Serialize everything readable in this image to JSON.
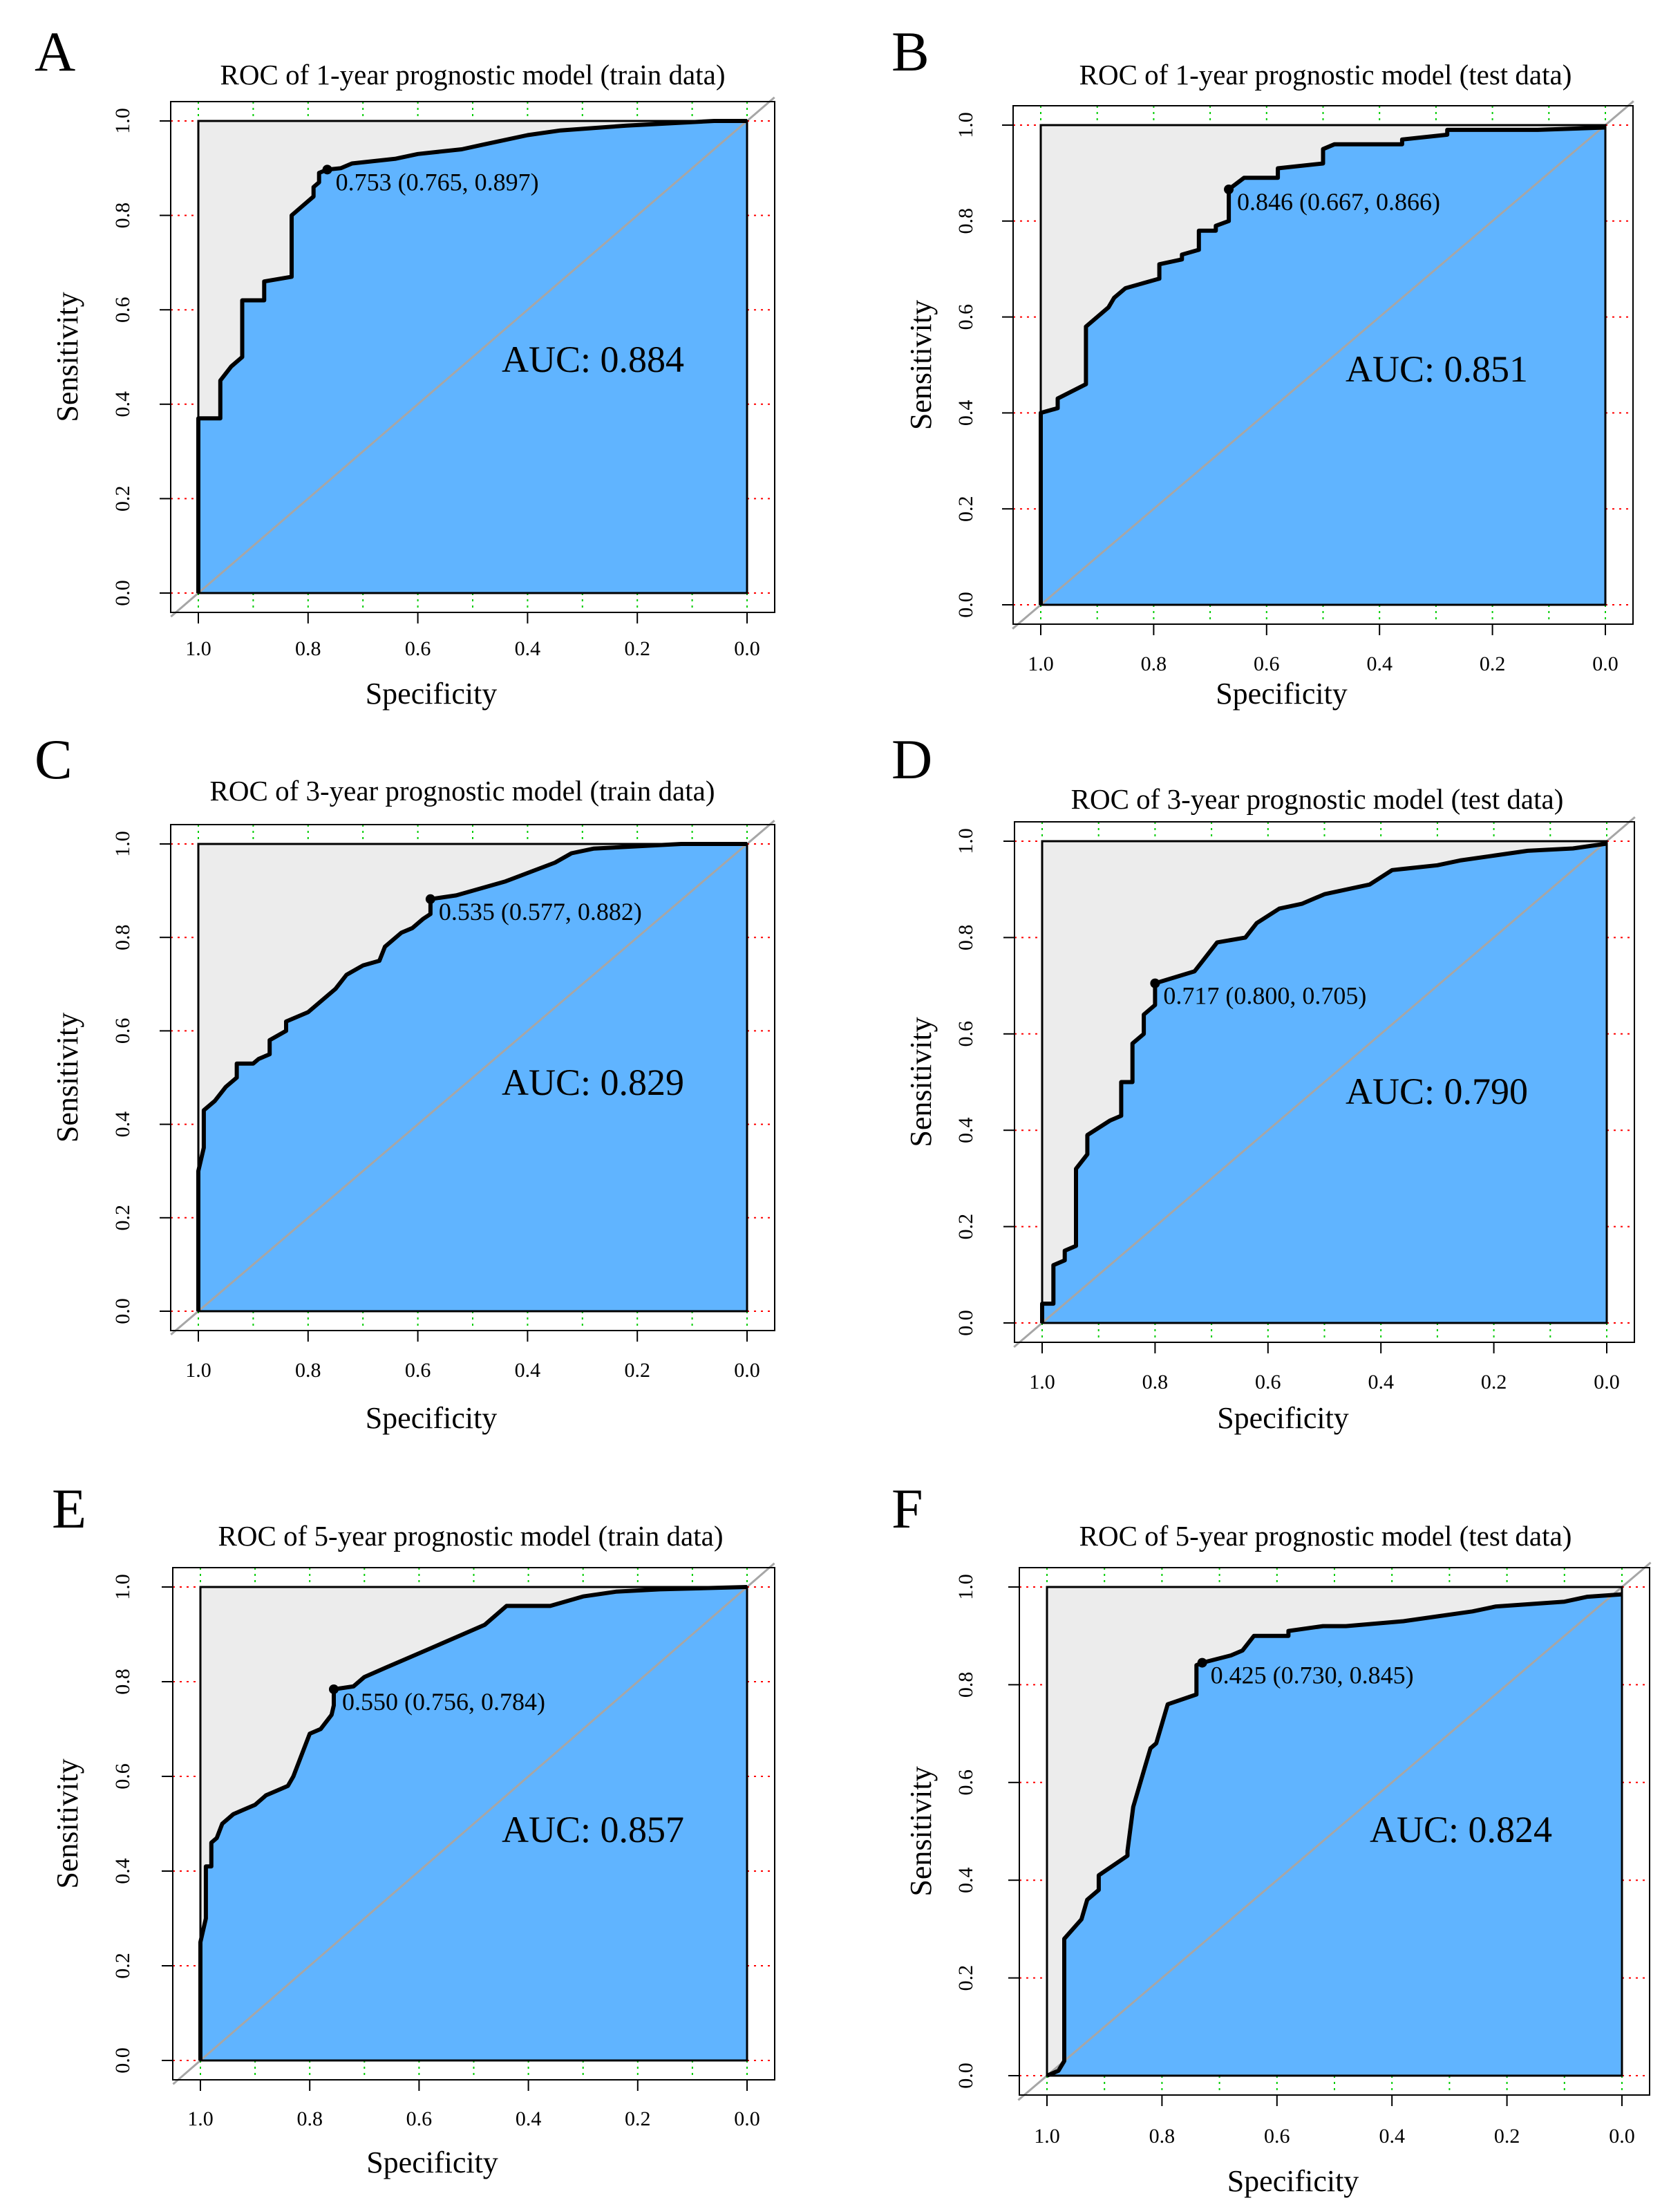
{
  "figure": {
    "panel_count": 6
  },
  "colors": {
    "auc_fill": "#60b4ff",
    "upper_fill": "#ececec",
    "curve": "#000000",
    "diagonal": "#a6a6a6",
    "red_grid": "#ff0000",
    "green_grid": "#00cc00"
  },
  "chart_data": [
    {
      "type": "line",
      "letter": "A",
      "title": "ROC of 1-year prognostic model (train data)",
      "xlabel": "Specificity",
      "ylabel": "Sensitivity",
      "xlim": [
        1.0,
        0.0
      ],
      "ylim": [
        0.0,
        1.0
      ],
      "xticks": [
        "1.0",
        "0.8",
        "0.6",
        "0.4",
        "0.2",
        "0.0"
      ],
      "yticks": [
        "0.0",
        "0.2",
        "0.4",
        "0.6",
        "0.8",
        "1.0"
      ],
      "auc_label": "AUC: 0.884",
      "threshold_label": "0.753 (0.765, 0.897)",
      "threshold_point": {
        "specificity": 0.765,
        "sensitivity": 0.897
      },
      "curve": [
        [
          1.0,
          0.0
        ],
        [
          1.0,
          0.37
        ],
        [
          0.96,
          0.37
        ],
        [
          0.96,
          0.45
        ],
        [
          0.94,
          0.48
        ],
        [
          0.92,
          0.5
        ],
        [
          0.92,
          0.62
        ],
        [
          0.88,
          0.62
        ],
        [
          0.88,
          0.66
        ],
        [
          0.83,
          0.67
        ],
        [
          0.83,
          0.8
        ],
        [
          0.81,
          0.82
        ],
        [
          0.79,
          0.84
        ],
        [
          0.79,
          0.86
        ],
        [
          0.78,
          0.87
        ],
        [
          0.78,
          0.89
        ],
        [
          0.765,
          0.897
        ],
        [
          0.74,
          0.9
        ],
        [
          0.72,
          0.91
        ],
        [
          0.64,
          0.92
        ],
        [
          0.6,
          0.93
        ],
        [
          0.52,
          0.94
        ],
        [
          0.48,
          0.95
        ],
        [
          0.44,
          0.96
        ],
        [
          0.4,
          0.97
        ],
        [
          0.34,
          0.98
        ],
        [
          0.28,
          0.985
        ],
        [
          0.22,
          0.99
        ],
        [
          0.14,
          0.995
        ],
        [
          0.06,
          1.0
        ],
        [
          0.0,
          1.0
        ]
      ]
    },
    {
      "type": "line",
      "letter": "B",
      "title": "ROC of 1-year prognostic model (test data)",
      "xlabel": "Specificity",
      "ylabel": "Sensitivity",
      "xlim": [
        1.0,
        0.0
      ],
      "ylim": [
        0.0,
        1.0
      ],
      "xticks": [
        "1.0",
        "0.8",
        "0.6",
        "0.4",
        "0.2",
        "0.0"
      ],
      "yticks": [
        "0.0",
        "0.2",
        "0.4",
        "0.6",
        "0.8",
        "1.0"
      ],
      "auc_label": "AUC: 0.851",
      "threshold_label": "0.846 (0.667, 0.866)",
      "threshold_point": {
        "specificity": 0.667,
        "sensitivity": 0.866
      },
      "curve": [
        [
          1.0,
          0.0
        ],
        [
          1.0,
          0.4
        ],
        [
          0.97,
          0.41
        ],
        [
          0.97,
          0.43
        ],
        [
          0.92,
          0.46
        ],
        [
          0.92,
          0.58
        ],
        [
          0.88,
          0.62
        ],
        [
          0.87,
          0.64
        ],
        [
          0.85,
          0.66
        ],
        [
          0.82,
          0.67
        ],
        [
          0.79,
          0.68
        ],
        [
          0.79,
          0.71
        ],
        [
          0.75,
          0.72
        ],
        [
          0.75,
          0.73
        ],
        [
          0.72,
          0.74
        ],
        [
          0.72,
          0.78
        ],
        [
          0.69,
          0.78
        ],
        [
          0.69,
          0.79
        ],
        [
          0.667,
          0.8
        ],
        [
          0.667,
          0.866
        ],
        [
          0.64,
          0.89
        ],
        [
          0.58,
          0.89
        ],
        [
          0.58,
          0.91
        ],
        [
          0.5,
          0.92
        ],
        [
          0.5,
          0.95
        ],
        [
          0.48,
          0.96
        ],
        [
          0.36,
          0.96
        ],
        [
          0.36,
          0.97
        ],
        [
          0.28,
          0.98
        ],
        [
          0.28,
          0.99
        ],
        [
          0.12,
          0.99
        ],
        [
          0.0,
          0.995
        ]
      ]
    },
    {
      "type": "line",
      "letter": "C",
      "title": "ROC of 3-year prognostic model (train data)",
      "xlabel": "Specificity",
      "ylabel": "Sensitivity",
      "xlim": [
        1.0,
        0.0
      ],
      "ylim": [
        0.0,
        1.0
      ],
      "xticks": [
        "1.0",
        "0.8",
        "0.6",
        "0.4",
        "0.2",
        "0.0"
      ],
      "yticks": [
        "0.0",
        "0.2",
        "0.4",
        "0.6",
        "0.8",
        "1.0"
      ],
      "auc_label": "AUC: 0.829",
      "threshold_label": "0.535 (0.577, 0.882)",
      "threshold_point": {
        "specificity": 0.577,
        "sensitivity": 0.882
      },
      "curve": [
        [
          1.0,
          0.0
        ],
        [
          1.0,
          0.3
        ],
        [
          0.99,
          0.35
        ],
        [
          0.99,
          0.43
        ],
        [
          0.97,
          0.45
        ],
        [
          0.95,
          0.48
        ],
        [
          0.93,
          0.5
        ],
        [
          0.93,
          0.53
        ],
        [
          0.9,
          0.53
        ],
        [
          0.89,
          0.54
        ],
        [
          0.87,
          0.55
        ],
        [
          0.87,
          0.58
        ],
        [
          0.84,
          0.6
        ],
        [
          0.84,
          0.62
        ],
        [
          0.8,
          0.64
        ],
        [
          0.77,
          0.67
        ],
        [
          0.75,
          0.69
        ],
        [
          0.73,
          0.72
        ],
        [
          0.7,
          0.74
        ],
        [
          0.67,
          0.75
        ],
        [
          0.66,
          0.78
        ],
        [
          0.63,
          0.81
        ],
        [
          0.61,
          0.82
        ],
        [
          0.59,
          0.84
        ],
        [
          0.577,
          0.85
        ],
        [
          0.577,
          0.882
        ],
        [
          0.53,
          0.89
        ],
        [
          0.44,
          0.92
        ],
        [
          0.35,
          0.96
        ],
        [
          0.32,
          0.98
        ],
        [
          0.28,
          0.99
        ],
        [
          0.2,
          0.995
        ],
        [
          0.12,
          1.0
        ],
        [
          0.0,
          1.0
        ]
      ]
    },
    {
      "type": "line",
      "letter": "D",
      "title": "ROC of 3-year prognostic model (test data)",
      "xlabel": "Specificity",
      "ylabel": "Sensitivity",
      "xlim": [
        1.0,
        0.0
      ],
      "ylim": [
        0.0,
        1.0
      ],
      "xticks": [
        "1.0",
        "0.8",
        "0.6",
        "0.4",
        "0.2",
        "0.0"
      ],
      "yticks": [
        "0.0",
        "0.2",
        "0.4",
        "0.6",
        "0.8",
        "1.0"
      ],
      "auc_label": "AUC: 0.790",
      "threshold_label": "0.717 (0.800, 0.705)",
      "threshold_point": {
        "specificity": 0.8,
        "sensitivity": 0.705
      },
      "curve": [
        [
          1.0,
          0.0
        ],
        [
          1.0,
          0.04
        ],
        [
          0.98,
          0.04
        ],
        [
          0.98,
          0.12
        ],
        [
          0.96,
          0.13
        ],
        [
          0.96,
          0.15
        ],
        [
          0.94,
          0.16
        ],
        [
          0.94,
          0.32
        ],
        [
          0.92,
          0.35
        ],
        [
          0.92,
          0.39
        ],
        [
          0.88,
          0.42
        ],
        [
          0.86,
          0.43
        ],
        [
          0.86,
          0.5
        ],
        [
          0.84,
          0.5
        ],
        [
          0.84,
          0.58
        ],
        [
          0.82,
          0.6
        ],
        [
          0.82,
          0.64
        ],
        [
          0.8,
          0.66
        ],
        [
          0.8,
          0.705
        ],
        [
          0.73,
          0.73
        ],
        [
          0.69,
          0.79
        ],
        [
          0.64,
          0.8
        ],
        [
          0.62,
          0.83
        ],
        [
          0.58,
          0.86
        ],
        [
          0.54,
          0.87
        ],
        [
          0.5,
          0.89
        ],
        [
          0.46,
          0.9
        ],
        [
          0.42,
          0.91
        ],
        [
          0.38,
          0.94
        ],
        [
          0.3,
          0.95
        ],
        [
          0.26,
          0.96
        ],
        [
          0.2,
          0.97
        ],
        [
          0.14,
          0.98
        ],
        [
          0.06,
          0.985
        ],
        [
          0.0,
          0.995
        ]
      ]
    },
    {
      "type": "line",
      "letter": "E",
      "title": "ROC of 5-year prognostic model (train data)",
      "xlabel": "Specificity",
      "ylabel": "Sensitivity",
      "xlim": [
        1.0,
        0.0
      ],
      "ylim": [
        0.0,
        1.0
      ],
      "xticks": [
        "1.0",
        "0.8",
        "0.6",
        "0.4",
        "0.2",
        "0.0"
      ],
      "yticks": [
        "0.0",
        "0.2",
        "0.4",
        "0.6",
        "0.8",
        "1.0"
      ],
      "auc_label": "AUC: 0.857",
      "threshold_label": "0.550 (0.756, 0.784)",
      "threshold_point": {
        "specificity": 0.756,
        "sensitivity": 0.784
      },
      "curve": [
        [
          1.0,
          0.0
        ],
        [
          1.0,
          0.25
        ],
        [
          0.99,
          0.3
        ],
        [
          0.99,
          0.41
        ],
        [
          0.98,
          0.41
        ],
        [
          0.98,
          0.46
        ],
        [
          0.97,
          0.47
        ],
        [
          0.96,
          0.5
        ],
        [
          0.94,
          0.52
        ],
        [
          0.92,
          0.53
        ],
        [
          0.9,
          0.54
        ],
        [
          0.88,
          0.56
        ],
        [
          0.86,
          0.57
        ],
        [
          0.84,
          0.58
        ],
        [
          0.83,
          0.6
        ],
        [
          0.82,
          0.63
        ],
        [
          0.8,
          0.69
        ],
        [
          0.78,
          0.7
        ],
        [
          0.76,
          0.73
        ],
        [
          0.756,
          0.75
        ],
        [
          0.756,
          0.784
        ],
        [
          0.72,
          0.79
        ],
        [
          0.7,
          0.81
        ],
        [
          0.66,
          0.83
        ],
        [
          0.62,
          0.85
        ],
        [
          0.58,
          0.87
        ],
        [
          0.52,
          0.9
        ],
        [
          0.48,
          0.92
        ],
        [
          0.44,
          0.96
        ],
        [
          0.36,
          0.96
        ],
        [
          0.3,
          0.98
        ],
        [
          0.24,
          0.99
        ],
        [
          0.16,
          0.995
        ],
        [
          0.0,
          1.0
        ]
      ]
    },
    {
      "type": "line",
      "letter": "F",
      "title": "ROC of 5-year prognostic model (test data)",
      "xlabel": "Specificity",
      "ylabel": "Sensitivity",
      "xlim": [
        1.0,
        0.0
      ],
      "ylim": [
        0.0,
        1.0
      ],
      "xticks": [
        "1.0",
        "0.8",
        "0.6",
        "0.4",
        "0.2",
        "0.0"
      ],
      "yticks": [
        "0.0",
        "0.2",
        "0.4",
        "0.6",
        "0.8",
        "1.0"
      ],
      "auc_label": "AUC: 0.824",
      "threshold_label": "0.425 (0.730, 0.845)",
      "threshold_point": {
        "specificity": 0.73,
        "sensitivity": 0.845
      },
      "curve": [
        [
          1.0,
          0.0
        ],
        [
          0.98,
          0.01
        ],
        [
          0.97,
          0.03
        ],
        [
          0.97,
          0.28
        ],
        [
          0.94,
          0.32
        ],
        [
          0.93,
          0.36
        ],
        [
          0.91,
          0.38
        ],
        [
          0.91,
          0.41
        ],
        [
          0.86,
          0.45
        ],
        [
          0.86,
          0.46
        ],
        [
          0.85,
          0.55
        ],
        [
          0.83,
          0.63
        ],
        [
          0.82,
          0.67
        ],
        [
          0.81,
          0.68
        ],
        [
          0.8,
          0.72
        ],
        [
          0.79,
          0.76
        ],
        [
          0.74,
          0.78
        ],
        [
          0.74,
          0.84
        ],
        [
          0.73,
          0.845
        ],
        [
          0.68,
          0.86
        ],
        [
          0.66,
          0.87
        ],
        [
          0.64,
          0.9
        ],
        [
          0.58,
          0.9
        ],
        [
          0.58,
          0.91
        ],
        [
          0.52,
          0.92
        ],
        [
          0.48,
          0.92
        ],
        [
          0.38,
          0.93
        ],
        [
          0.32,
          0.94
        ],
        [
          0.26,
          0.95
        ],
        [
          0.22,
          0.96
        ],
        [
          0.1,
          0.97
        ],
        [
          0.06,
          0.98
        ],
        [
          0.0,
          0.985
        ]
      ]
    }
  ]
}
